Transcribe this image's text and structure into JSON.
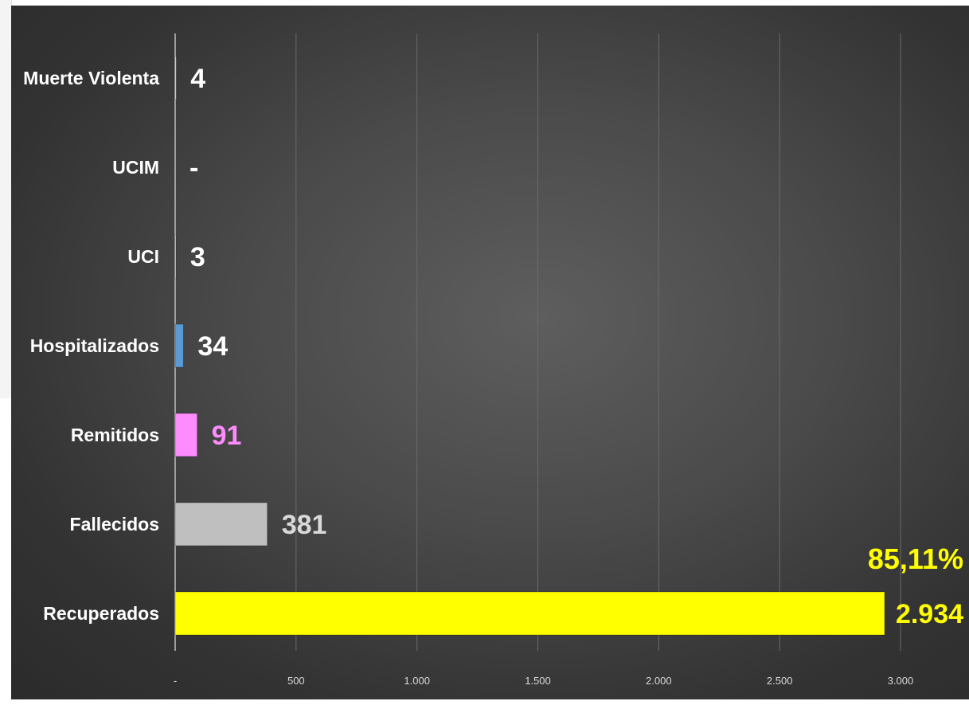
{
  "chart_data": {
    "type": "bar",
    "orientation": "horizontal",
    "categories": [
      "Muerte Violenta",
      "UCIM",
      "UCI",
      "Hospitalizados",
      "Remitidos",
      "Fallecidos",
      "Recuperados"
    ],
    "values": [
      4,
      0,
      3,
      34,
      91,
      381,
      2934
    ],
    "value_labels": [
      "4",
      "-",
      "3",
      "34",
      "91",
      "381",
      "2.934"
    ],
    "bar_colors": [
      "#ffffff",
      "#ffffff",
      "#ffffff",
      "#5b9bd5",
      "#ff8cff",
      "#bfbfbf",
      "#ffff00"
    ],
    "label_colors": [
      "#ffffff",
      "#ffffff",
      "#ffffff",
      "#ffffff",
      "#ff8cff",
      "#d9d9d9",
      "#ffff00"
    ],
    "xlim": [
      0,
      3000
    ],
    "xticks": [
      0,
      500,
      1000,
      1500,
      2000,
      2500,
      3000
    ],
    "xtick_labels": [
      "-",
      "500",
      "1.000",
      "1.500",
      "2.000",
      "2.500",
      "3.000"
    ],
    "gridlines": true,
    "annotation": "85,11%",
    "title": "",
    "xlabel": "",
    "ylabel": ""
  }
}
